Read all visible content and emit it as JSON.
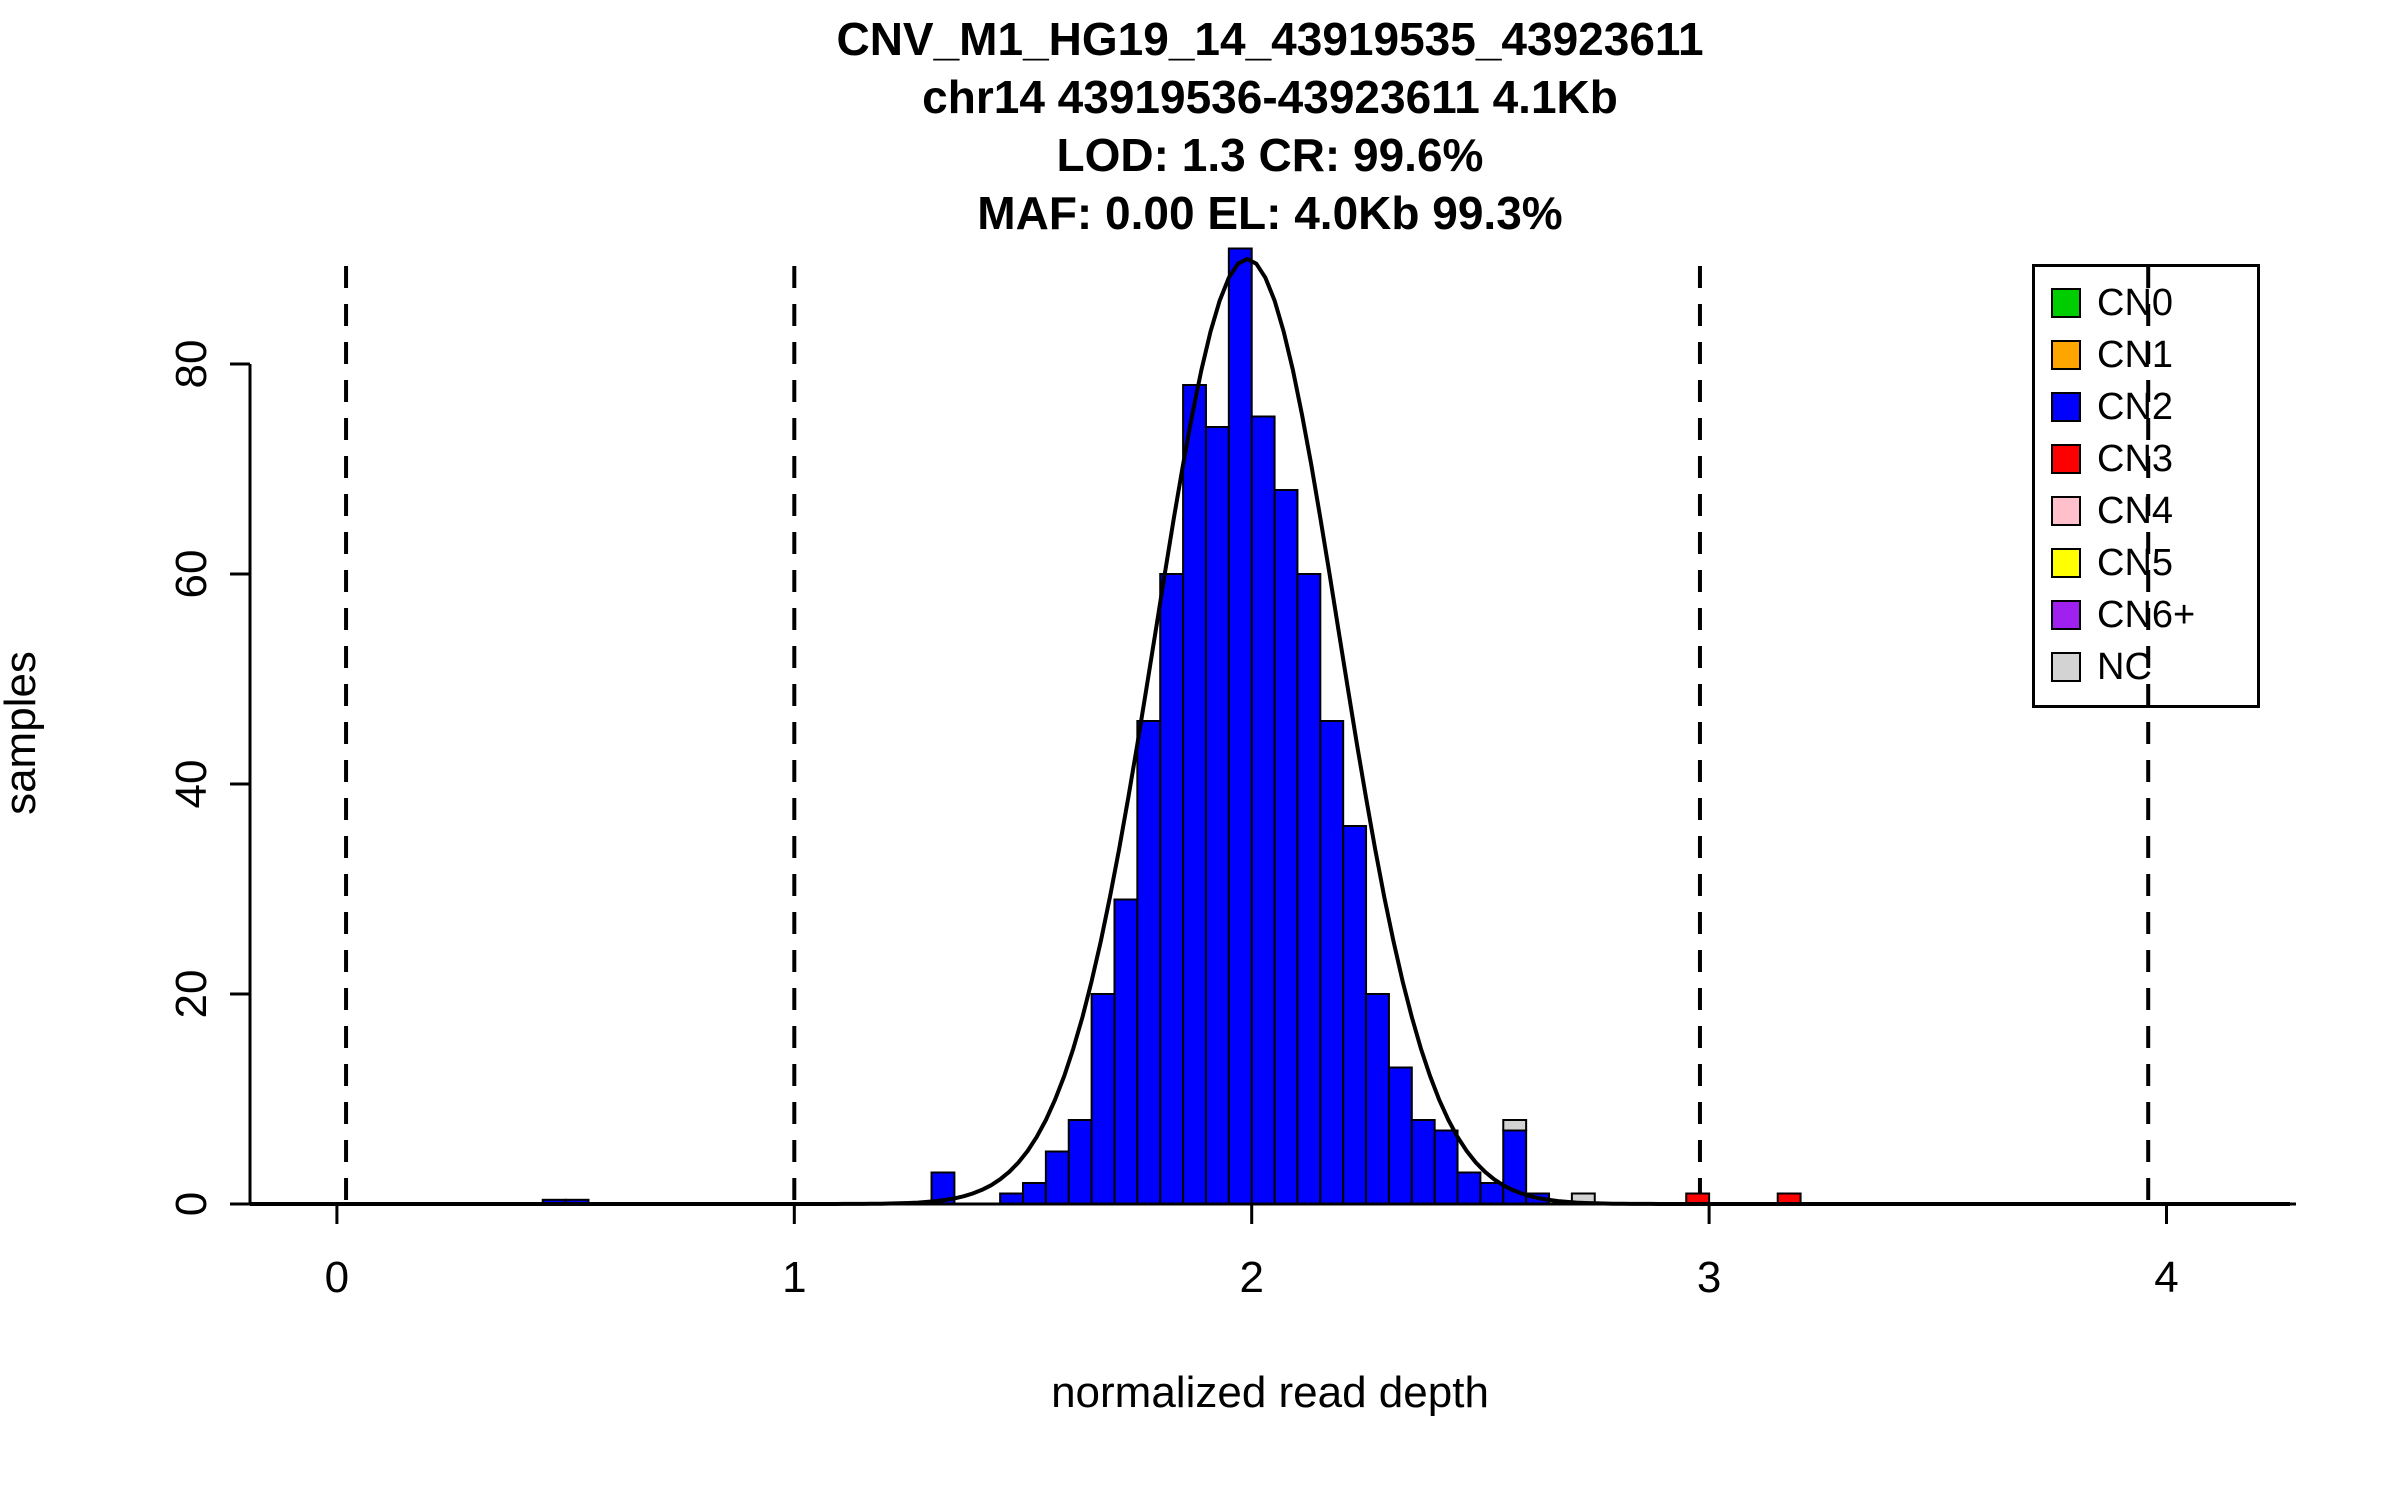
{
  "background": "#FFFFFF",
  "title": {
    "line1": "CNV_M1_HG19_14_43919535_43923611",
    "line2": "chr14 43919536-43923611 4.1Kb",
    "line3": "LOD: 1.3 CR: 99.6%",
    "line4": "MAF: 0.00 EL: 4.0Kb 99.3%"
  },
  "axes": {
    "x_label": "normalized read depth",
    "y_label": "samples",
    "x_ticks": [
      0,
      1,
      2,
      3,
      4
    ],
    "y_ticks": [
      0,
      20,
      40,
      60,
      80
    ]
  },
  "legend": {
    "entries": [
      {
        "label": "CN0",
        "color": "#00CD00"
      },
      {
        "label": "CN1",
        "color": "#FFA500"
      },
      {
        "label": "CN2",
        "color": "#0000FF"
      },
      {
        "label": "CN3",
        "color": "#FF0000"
      },
      {
        "label": "CN4",
        "color": "#FFC0CB"
      },
      {
        "label": "CN5",
        "color": "#FFFF00"
      },
      {
        "label": "CN6+",
        "color": "#A020F0"
      },
      {
        "label": "NC",
        "color": "#D3D3D3"
      }
    ]
  },
  "chart_data": {
    "type": "bar",
    "subtype": "stacked-histogram with gaussian fit",
    "title": "CNV_M1_HG19_14_43919535_43923611",
    "xlabel": "normalized read depth",
    "ylabel": "samples",
    "xlim": [
      -0.19,
      4.27
    ],
    "ylim": [
      0,
      90
    ],
    "grid": false,
    "legend_position": "top-right",
    "bin_width": 0.05,
    "class_colors": {
      "CN0": "#00CD00",
      "CN1": "#FFA500",
      "CN2": "#0000FF",
      "CN3": "#FF0000",
      "CN4": "#FFC0CB",
      "CN5": "#FFFF00",
      "CN6+": "#A020F0",
      "NC": "#D3D3D3"
    },
    "bars": [
      {
        "x": 0.45,
        "segments": [
          [
            "CN2",
            0.4
          ]
        ]
      },
      {
        "x": 0.5,
        "segments": [
          [
            "CN2",
            0.4
          ]
        ]
      },
      {
        "x": 1.3,
        "segments": [
          [
            "CN2",
            3
          ]
        ]
      },
      {
        "x": 1.45,
        "segments": [
          [
            "CN2",
            1
          ]
        ]
      },
      {
        "x": 1.5,
        "segments": [
          [
            "CN2",
            2
          ]
        ]
      },
      {
        "x": 1.55,
        "segments": [
          [
            "CN2",
            5
          ]
        ]
      },
      {
        "x": 1.6,
        "segments": [
          [
            "CN2",
            8
          ]
        ]
      },
      {
        "x": 1.65,
        "segments": [
          [
            "CN2",
            20
          ]
        ]
      },
      {
        "x": 1.7,
        "segments": [
          [
            "CN2",
            29
          ]
        ]
      },
      {
        "x": 1.75,
        "segments": [
          [
            "CN2",
            46
          ]
        ]
      },
      {
        "x": 1.8,
        "segments": [
          [
            "CN2",
            60
          ]
        ]
      },
      {
        "x": 1.85,
        "segments": [
          [
            "CN2",
            78
          ]
        ]
      },
      {
        "x": 1.9,
        "segments": [
          [
            "CN2",
            74
          ]
        ]
      },
      {
        "x": 1.95,
        "segments": [
          [
            "CN2",
            91
          ]
        ]
      },
      {
        "x": 2.0,
        "segments": [
          [
            "CN2",
            75
          ]
        ]
      },
      {
        "x": 2.05,
        "segments": [
          [
            "CN2",
            68
          ]
        ]
      },
      {
        "x": 2.1,
        "segments": [
          [
            "CN2",
            60
          ]
        ]
      },
      {
        "x": 2.15,
        "segments": [
          [
            "CN2",
            46
          ]
        ]
      },
      {
        "x": 2.2,
        "segments": [
          [
            "CN2",
            36
          ]
        ]
      },
      {
        "x": 2.25,
        "segments": [
          [
            "CN2",
            20
          ]
        ]
      },
      {
        "x": 2.3,
        "segments": [
          [
            "CN2",
            13
          ]
        ]
      },
      {
        "x": 2.35,
        "segments": [
          [
            "CN2",
            8
          ]
        ]
      },
      {
        "x": 2.4,
        "segments": [
          [
            "CN2",
            7
          ]
        ]
      },
      {
        "x": 2.45,
        "segments": [
          [
            "CN2",
            3
          ]
        ]
      },
      {
        "x": 2.5,
        "segments": [
          [
            "CN2",
            2
          ]
        ]
      },
      {
        "x": 2.55,
        "segments": [
          [
            "CN2",
            7
          ],
          [
            "NC",
            1
          ]
        ]
      },
      {
        "x": 2.6,
        "segments": [
          [
            "CN2",
            1
          ]
        ]
      },
      {
        "x": 2.7,
        "segments": [
          [
            "NC",
            1
          ]
        ]
      },
      {
        "x": 2.95,
        "segments": [
          [
            "CN3",
            1
          ]
        ]
      },
      {
        "x": 3.15,
        "segments": [
          [
            "CN3",
            1
          ]
        ]
      }
    ],
    "curve": {
      "shape": "gaussian",
      "mean": 1.99,
      "sd": 0.2,
      "peak": 90,
      "color": "#000000"
    },
    "vlines": {
      "x": [
        0.02,
        1.0,
        1.99,
        2.98,
        3.96
      ],
      "style": "dashed",
      "color": "#000000"
    }
  }
}
